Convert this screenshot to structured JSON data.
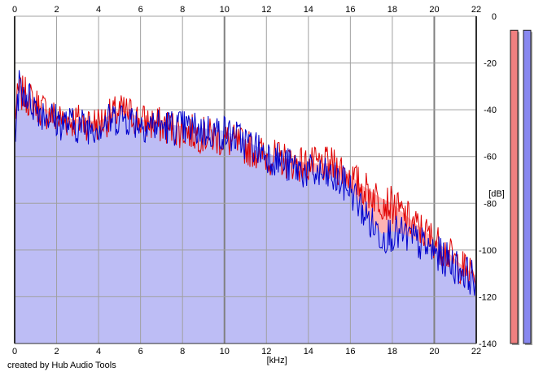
{
  "app": {
    "credit": "created by Hub Audio Tools"
  },
  "colors": {
    "left_channel": "#e00000",
    "right_channel": "#0000cc",
    "fill_left": "#ffb3b3",
    "fill_right": "#bdbdf5",
    "grid": "#a0a0a0",
    "meter_left": "#f08080",
    "meter_right": "#8888f0"
  },
  "chart_data": {
    "type": "area",
    "xlabel": "[kHz]",
    "ylabel": "[dB]",
    "xlim": [
      0,
      22
    ],
    "ylim": [
      -140,
      0
    ],
    "x_ticks": [
      "0",
      "2",
      "4",
      "6",
      "8",
      "10",
      "12",
      "14",
      "16",
      "18",
      "20",
      "22"
    ],
    "y_ticks": [
      "0",
      "-20",
      "-40",
      "-60",
      "-80",
      "-100",
      "-120",
      "-140"
    ],
    "grid": true,
    "series": [
      {
        "channel": "left",
        "x": [
          0,
          0.2,
          0.5,
          1,
          1.5,
          2,
          3,
          4,
          5,
          5.5,
          6,
          7,
          8,
          9,
          10,
          11,
          12,
          13,
          14,
          15,
          15.5,
          16,
          16.5,
          17,
          17.5,
          18,
          18.5,
          19,
          20,
          21,
          21.5,
          22
        ],
        "y": [
          -42,
          -32,
          -33,
          -37,
          -40,
          -43,
          -44,
          -45,
          -40,
          -41,
          -44,
          -46,
          -48,
          -50,
          -52,
          -55,
          -59,
          -61,
          -63,
          -63,
          -64,
          -68,
          -72,
          -75,
          -78,
          -80,
          -84,
          -88,
          -95,
          -104,
          -108,
          -111
        ]
      },
      {
        "channel": "right",
        "x": [
          0,
          0.2,
          0.5,
          1,
          1.5,
          2,
          3,
          4,
          5,
          5.5,
          6,
          7,
          8,
          9,
          10,
          11,
          12,
          13,
          14,
          15,
          15.5,
          16,
          16.5,
          17,
          17.5,
          18,
          18.5,
          19,
          20,
          21,
          21.5,
          22
        ],
        "y": [
          -50,
          -29,
          -32,
          -38,
          -41,
          -44,
          -46,
          -46,
          -42,
          -43,
          -45,
          -46,
          -47,
          -48,
          -49,
          -53,
          -58,
          -63,
          -66,
          -68,
          -70,
          -73,
          -81,
          -88,
          -93,
          -92,
          -93,
          -95,
          -100,
          -106,
          -109,
          -112
        ]
      }
    ],
    "level_meters": [
      {
        "channel": "left",
        "level_db": -6
      },
      {
        "channel": "right",
        "level_db": -6
      }
    ]
  }
}
